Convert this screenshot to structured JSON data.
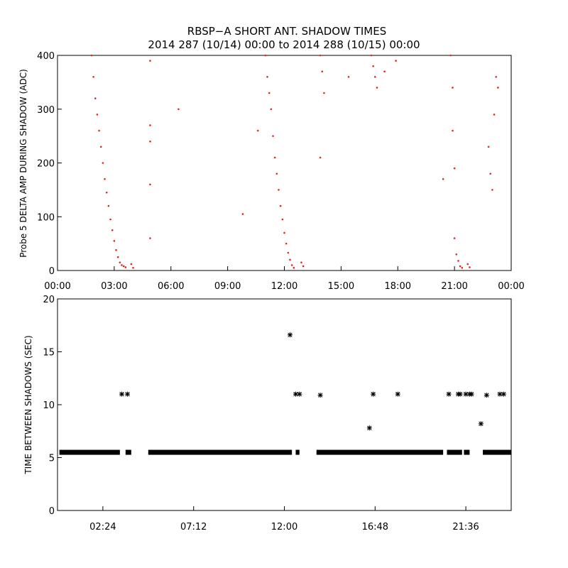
{
  "chart_data": [
    {
      "type": "scatter",
      "title": "RBSP−A SHORT ANT. SHADOW TIMES",
      "subtitle": "2014 287 (10/14) 00:00 to 2014 288 (10/15) 00:00",
      "xlabel": "",
      "ylabel": "Probe 5 DELTA AMP DURING SHADOW (ADC)",
      "xlim_hours": [
        0,
        24
      ],
      "ylim": [
        0,
        400
      ],
      "xticks": [
        "00:00",
        "03:00",
        "06:00",
        "09:00",
        "12:00",
        "15:00",
        "18:00",
        "21:00",
        "00:00"
      ],
      "yticks": [
        "0",
        "100",
        "200",
        "300",
        "400"
      ],
      "point_color": "#e0281e",
      "series": [
        {
          "points": [
            [
              1.8,
              400
            ],
            [
              1.9,
              360
            ],
            [
              2.0,
              320
            ],
            [
              2.1,
              290
            ],
            [
              2.2,
              260
            ],
            [
              2.3,
              230
            ],
            [
              2.4,
              200
            ],
            [
              2.5,
              170
            ],
            [
              2.6,
              145
            ],
            [
              2.7,
              120
            ],
            [
              2.8,
              95
            ],
            [
              2.9,
              75
            ],
            [
              3.0,
              55
            ],
            [
              3.1,
              38
            ],
            [
              3.2,
              25
            ],
            [
              3.3,
              15
            ],
            [
              3.4,
              10
            ],
            [
              3.5,
              8
            ],
            [
              3.6,
              6
            ],
            [
              3.9,
              12
            ],
            [
              4.0,
              5
            ],
            [
              4.9,
              390
            ],
            [
              4.9,
              270
            ],
            [
              4.9,
              240
            ],
            [
              4.9,
              160
            ],
            [
              4.9,
              60
            ],
            [
              6.4,
              300
            ],
            [
              9.8,
              105
            ],
            [
              10.6,
              260
            ],
            [
              11.0,
              400
            ],
            [
              11.1,
              360
            ],
            [
              11.2,
              330
            ],
            [
              11.3,
              300
            ],
            [
              11.4,
              250
            ],
            [
              11.5,
              210
            ],
            [
              11.6,
              180
            ],
            [
              11.7,
              150
            ],
            [
              11.8,
              120
            ],
            [
              11.9,
              95
            ],
            [
              12.0,
              70
            ],
            [
              12.1,
              50
            ],
            [
              12.2,
              33
            ],
            [
              12.3,
              20
            ],
            [
              12.4,
              10
            ],
            [
              12.5,
              5
            ],
            [
              12.9,
              15
            ],
            [
              13.0,
              8
            ],
            [
              13.9,
              400
            ],
            [
              14.0,
              370
            ],
            [
              14.1,
              330
            ],
            [
              13.9,
              210
            ],
            [
              15.4,
              360
            ],
            [
              16.6,
              400
            ],
            [
              16.7,
              380
            ],
            [
              16.8,
              360
            ],
            [
              16.9,
              340
            ],
            [
              17.3,
              370
            ],
            [
              17.9,
              390
            ],
            [
              20.4,
              170
            ],
            [
              20.8,
              400
            ],
            [
              20.9,
              340
            ],
            [
              20.9,
              260
            ],
            [
              21.0,
              190
            ],
            [
              21.0,
              60
            ],
            [
              21.1,
              30
            ],
            [
              21.2,
              18
            ],
            [
              21.3,
              8
            ],
            [
              21.4,
              5
            ],
            [
              21.7,
              12
            ],
            [
              21.8,
              6
            ],
            [
              22.8,
              230
            ],
            [
              22.9,
              180
            ],
            [
              23.0,
              150
            ],
            [
              23.1,
              290
            ],
            [
              23.2,
              360
            ],
            [
              23.3,
              340
            ]
          ]
        }
      ]
    },
    {
      "type": "scatter",
      "title": "",
      "xlabel": "",
      "ylabel": "TIME BETWEEN SHADOWS (SEC)",
      "xlim_hours": [
        0,
        24
      ],
      "ylim": [
        0,
        20
      ],
      "xtick_values_hours": [
        2.4,
        7.2,
        12.0,
        16.8,
        21.6
      ],
      "xticks": [
        "02:24",
        "07:12",
        "12:00",
        "16:48",
        "21:36"
      ],
      "yticks": [
        "0",
        "5",
        "10",
        "15",
        "20"
      ],
      "point_color": "#000000",
      "baseline": {
        "value": 5.5,
        "segments_hours": [
          [
            0.1,
            3.3
          ],
          [
            3.6,
            3.9
          ],
          [
            4.8,
            12.4
          ],
          [
            12.6,
            12.8
          ],
          [
            13.7,
            20.4
          ],
          [
            20.6,
            21.4
          ],
          [
            21.5,
            21.8
          ],
          [
            22.5,
            24.0
          ]
        ]
      },
      "series": [
        {
          "points": [
            [
              3.4,
              11.0
            ],
            [
              3.7,
              11.0
            ],
            [
              12.3,
              16.6
            ],
            [
              12.6,
              11.0
            ],
            [
              12.8,
              11.0
            ],
            [
              13.9,
              10.9
            ],
            [
              16.5,
              7.8
            ],
            [
              16.7,
              11.0
            ],
            [
              18.0,
              11.0
            ],
            [
              20.7,
              11.0
            ],
            [
              21.2,
              11.0
            ],
            [
              21.3,
              11.0
            ],
            [
              21.6,
              11.0
            ],
            [
              21.8,
              11.0
            ],
            [
              21.9,
              11.0
            ],
            [
              22.4,
              8.2
            ],
            [
              22.7,
              10.9
            ],
            [
              23.4,
              11.0
            ],
            [
              23.6,
              11.0
            ]
          ]
        }
      ]
    }
  ]
}
